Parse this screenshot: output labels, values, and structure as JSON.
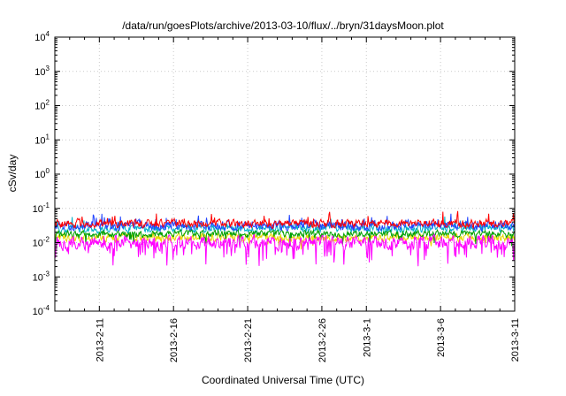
{
  "chart_data": {
    "type": "line",
    "title": "/data/run/goesPlots/archive/2013-03-10/flux/../bryn/31daysMoon.plot",
    "xlabel": "Coordinated Universal Time (UTC)",
    "ylabel": "cSv/day",
    "y_scale": "log10",
    "y_min_exp": -4,
    "y_max_exp": 4,
    "y_ticks": [
      {
        "label": "10^4",
        "exp": 4
      },
      {
        "label": "10^3",
        "exp": 3
      },
      {
        "label": "10^2",
        "exp": 2
      },
      {
        "label": "10^1",
        "exp": 1
      },
      {
        "label": "10^0",
        "exp": 0
      },
      {
        "label": "10^-1",
        "exp": -1
      },
      {
        "label": "10^-2",
        "exp": -2
      },
      {
        "label": "10^-3",
        "exp": -3
      },
      {
        "label": "10^-4",
        "exp": -4
      }
    ],
    "x_span_days": 31,
    "x_ticks": [
      {
        "label": "2013-2-11",
        "day": 3
      },
      {
        "label": "2013-2-16",
        "day": 8
      },
      {
        "label": "2013-2-21",
        "day": 13
      },
      {
        "label": "2013-2-26",
        "day": 18
      },
      {
        "label": "2013-3-1",
        "day": 21
      },
      {
        "label": "2013-3-6",
        "day": 26
      },
      {
        "label": "2013-3-11",
        "day": 31
      }
    ],
    "grid": "dotted",
    "legend": "none",
    "approx_band_log10": [
      -2.9,
      -1.0
    ],
    "points_per_series": 744,
    "seed": 20130310,
    "series": [
      {
        "name": "series-yellow",
        "color": "#e8d800",
        "base_log10": -1.85,
        "noise_log10": 0.18,
        "spike_dir": -1,
        "spike_prob": 0.02,
        "spike_mag": 0.3
      },
      {
        "name": "series-cyan",
        "color": "#00b0c8",
        "base_log10": -1.58,
        "noise_log10": 0.18,
        "spike_dir": 1,
        "spike_prob": 0.03,
        "spike_mag": 0.25
      },
      {
        "name": "series-green",
        "color": "#00a000",
        "base_log10": -1.74,
        "noise_log10": 0.15,
        "spike_dir": -1,
        "spike_prob": 0.03,
        "spike_mag": 0.3
      },
      {
        "name": "series-blue",
        "color": "#2244ff",
        "base_log10": -1.5,
        "noise_log10": 0.2,
        "spike_dir": 1,
        "spike_prob": 0.04,
        "spike_mag": 0.3
      },
      {
        "name": "series-red",
        "color": "#ff0000",
        "base_log10": -1.44,
        "noise_log10": 0.18,
        "spike_dir": 1,
        "spike_prob": 0.04,
        "spike_mag": 0.3
      },
      {
        "name": "series-magenta",
        "color": "#ff00ff",
        "base_log10": -2.0,
        "noise_log10": 0.3,
        "spike_dir": -1,
        "spike_prob": 0.1,
        "spike_mag": 0.55
      }
    ]
  }
}
